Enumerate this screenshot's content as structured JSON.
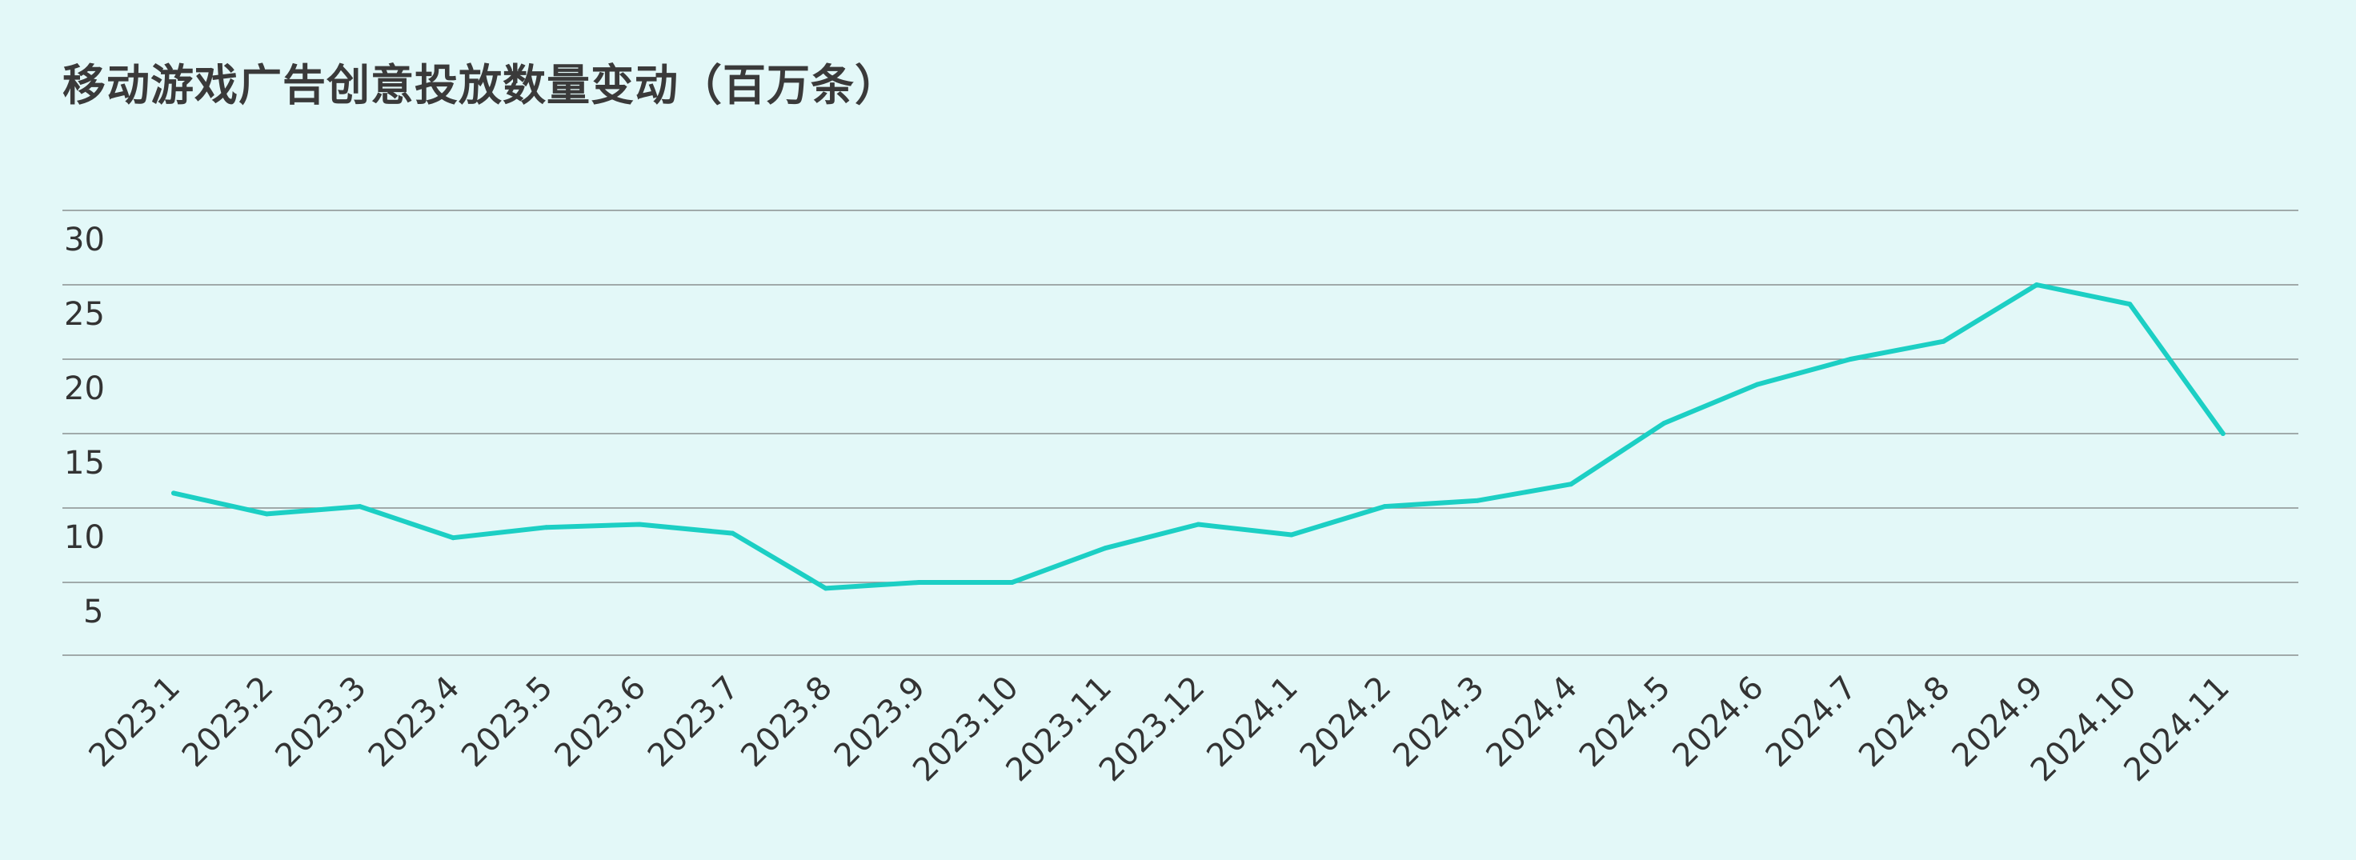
{
  "chart_data": {
    "type": "line",
    "title": "移动游戏广告创意投放数量变动（百万条）",
    "xlabel": "",
    "ylabel": "",
    "categories": [
      "2023.1",
      "2023.2",
      "2023.3",
      "2023.4",
      "2023.5",
      "2023.6",
      "2023.7",
      "2023.8",
      "2023.9",
      "2023.10",
      "2023.11",
      "2023.12",
      "2024.1",
      "2024.2",
      "2024.3",
      "2024.4",
      "2024.5",
      "2024.6",
      "2024.7",
      "2024.8",
      "2024.9",
      "2024.10",
      "2024.11"
    ],
    "series": [
      {
        "name": "",
        "color": "#1ccfc4",
        "values": [
          11.0,
          9.6,
          10.1,
          8.0,
          8.7,
          8.9,
          8.3,
          4.6,
          5.0,
          5.0,
          7.3,
          8.9,
          8.2,
          10.1,
          10.5,
          11.6,
          15.7,
          18.3,
          20.0,
          21.2,
          25.0,
          23.7,
          15.0
        ]
      }
    ],
    "yticks": [
      30,
      25,
      20,
      15,
      10,
      5
    ],
    "ylim": [
      0,
      30
    ],
    "grid": true,
    "legend": "none"
  }
}
